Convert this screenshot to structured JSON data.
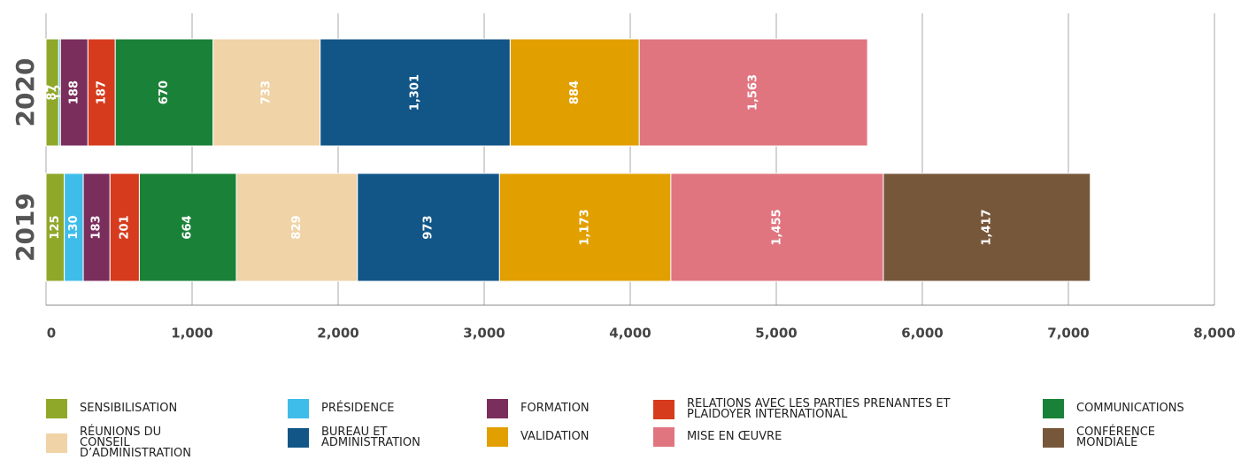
{
  "chart_data": {
    "type": "stacked-barh",
    "categories": [
      "2020",
      "2019"
    ],
    "series": [
      {
        "name": "SENSIBILISATION",
        "color": "#8fa82a",
        "values": [
          87,
          125
        ]
      },
      {
        "name": "PRÉSIDENCE",
        "color": "#3fbdea",
        "values": [
          12,
          130
        ]
      },
      {
        "name": "FORMATION",
        "color": "#7a2e5c",
        "values": [
          188,
          183
        ]
      },
      {
        "name": "RELATIONS AVEC LES PARTIES PRENANTES ET PLAIDOYER INTERNATIONAL",
        "color": "#d63b1e",
        "values": [
          187,
          201
        ]
      },
      {
        "name": "COMMUNICATIONS",
        "color": "#1a8238",
        "values": [
          670,
          664
        ]
      },
      {
        "name": "RÉUNIONS DU CONSEIL D’ADMINISTRATION",
        "color": "#f0d3a6",
        "values": [
          733,
          829
        ]
      },
      {
        "name": "BUREAU ET ADMINISTRATION",
        "color": "#125688",
        "values": [
          1301,
          973
        ],
        "value_labels": [
          "1,301",
          "973"
        ]
      },
      {
        "name": "VALIDATION",
        "color": "#e29f00",
        "values": [
          884,
          1173
        ],
        "value_labels": [
          "884",
          "1,173"
        ]
      },
      {
        "name": "MISE EN ŒUVRE",
        "color": "#e07580",
        "values": [
          1563,
          1455
        ],
        "value_labels": [
          "1,563",
          "1,455"
        ]
      },
      {
        "name": "CONFÉRENCE MONDIALE",
        "color": "#77573a",
        "values": [
          null,
          1417
        ],
        "value_labels": [
          null,
          "1,417"
        ]
      }
    ],
    "xlim": [
      0,
      8000
    ],
    "xticks": [
      0,
      {
        "value": 1000,
        "label": "1,000"
      },
      {
        "value": 2000,
        "label": "2,000"
      },
      {
        "value": 3000,
        "label": "3,000"
      },
      {
        "value": 4000,
        "label": "4,000"
      },
      {
        "value": 5000,
        "label": "5,000"
      },
      {
        "value": 6000,
        "label": "6,000"
      },
      {
        "value": 7000,
        "label": "7,000"
      },
      {
        "value": 8000,
        "label": "8,000"
      }
    ],
    "grid": true
  }
}
